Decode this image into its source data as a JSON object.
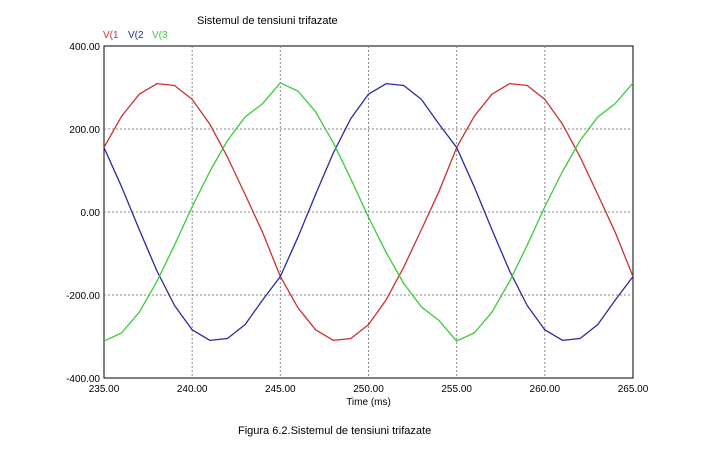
{
  "chart_data": {
    "type": "line",
    "title": "Sistemul de tensiuni trifazate",
    "xlabel": "Time (ms)",
    "ylabel": "",
    "xlim": [
      235,
      265
    ],
    "ylim": [
      -400,
      400
    ],
    "x_ticks": [
      "235.00",
      "240.00",
      "245.00",
      "250.00",
      "255.00",
      "260.00",
      "265.00"
    ],
    "y_ticks": [
      "400.00",
      "200.00",
      "0.00",
      "-200.00",
      "-400.00"
    ],
    "grid": true,
    "legend_position": "top-left",
    "series": [
      {
        "name": "V(1",
        "color": "#c83232",
        "x": [
          235.0,
          236.0,
          237.0,
          238.0,
          239.0,
          240.0,
          241.0,
          242.0,
          243.0,
          244.0,
          245.0,
          246.0,
          247.0,
          248.0,
          249.0,
          250.0,
          251.0,
          252.0,
          253.0,
          254.0,
          255.0,
          256.0,
          257.0,
          258.0,
          259.0,
          260.0,
          261.0,
          262.0,
          263.0,
          264.0,
          265.0
        ],
        "values": [
          155.5,
          230.9,
          283.9,
          309.3,
          304.9,
          271.3,
          211.7,
          132.6,
          42.5,
          -49.8,
          -155.5,
          -230.9,
          -283.9,
          -309.3,
          -304.9,
          -271.3,
          -211.7,
          -132.6,
          -42.5,
          49.8,
          155.5,
          230.9,
          283.9,
          309.3,
          304.9,
          271.3,
          211.7,
          132.6,
          42.5,
          -49.8,
          -155.5
        ]
      },
      {
        "name": "V(2",
        "color": "#2a2aa0",
        "x": [
          235.0,
          236.0,
          237.0,
          238.0,
          239.0,
          240.0,
          241.0,
          242.0,
          243.0,
          244.0,
          245.0,
          246.0,
          247.0,
          248.0,
          249.0,
          250.0,
          251.0,
          252.0,
          253.0,
          254.0,
          255.0,
          256.0,
          257.0,
          258.0,
          259.0,
          260.0,
          261.0,
          262.0,
          263.0,
          264.0,
          265.0
        ],
        "values": [
          155.5,
          60.4,
          -42.5,
          -141.9,
          -225.3,
          -283.9,
          -309.3,
          -304.9,
          -271.3,
          -211.7,
          -155.5,
          -60.4,
          42.5,
          141.9,
          225.3,
          283.9,
          309.3,
          304.9,
          271.3,
          211.7,
          155.5,
          60.4,
          -42.5,
          -141.9,
          -225.3,
          -283.9,
          -309.3,
          -304.9,
          -271.3,
          -211.7,
          -155.5
        ]
      },
      {
        "name": "V(3",
        "color": "#3ccc3c",
        "x": [
          235.0,
          236.0,
          237.0,
          238.0,
          239.0,
          240.0,
          241.0,
          242.0,
          243.0,
          244.0,
          245.0,
          246.0,
          247.0,
          248.0,
          249.0,
          250.0,
          251.0,
          252.0,
          253.0,
          254.0,
          255.0,
          256.0,
          257.0,
          258.0,
          259.0,
          260.0,
          261.0,
          262.0,
          263.0,
          264.0,
          265.0
        ],
        "values": [
          -311.0,
          -291.3,
          -241.4,
          -167.4,
          -79.6,
          12.6,
          97.6,
          172.3,
          228.8,
          261.5,
          311.0,
          291.3,
          241.4,
          167.4,
          79.6,
          -12.6,
          -97.6,
          -172.3,
          -228.8,
          -261.5,
          -311.0,
          -291.3,
          -241.4,
          -167.4,
          -79.6,
          12.6,
          97.6,
          172.3,
          228.8,
          261.5,
          311.0
        ]
      }
    ]
  },
  "caption": "Figura 6.2.Sistemul de tensiuni trifazate"
}
